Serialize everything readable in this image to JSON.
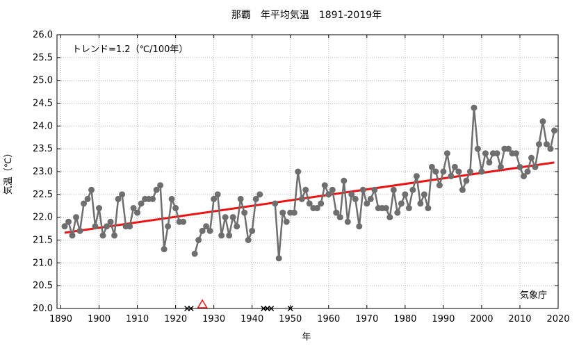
{
  "chart_data": {
    "type": "line",
    "title": "那覇　年平均気温　1891-2019年",
    "xlabel": "年",
    "ylabel": "気温（℃）",
    "trend_label": "トレンド=1.2（℃/100年）",
    "source": "気象庁",
    "xlim": [
      1889,
      2020
    ],
    "ylim": [
      20.0,
      26.0
    ],
    "x_ticks": [
      1890,
      1900,
      1910,
      1920,
      1930,
      1940,
      1950,
      1960,
      1970,
      1980,
      1990,
      2000,
      2010,
      2020
    ],
    "y_ticks": [
      "20.0",
      "20.5",
      "21.0",
      "21.5",
      "22.0",
      "22.5",
      "23.0",
      "23.5",
      "24.0",
      "24.5",
      "25.0",
      "25.5",
      "26.0"
    ],
    "grid": true,
    "colors": {
      "series": "#6e6e6e",
      "trend": "#ee1111",
      "grid": "#b4b4b4",
      "marker_x": "#000000",
      "marker_triangle": "#ee1111"
    },
    "trend": {
      "x": [
        1891,
        2019
      ],
      "y": [
        21.66,
        23.2
      ]
    },
    "x_markers": [
      1923,
      1924,
      1943,
      1944,
      1945,
      1950
    ],
    "triangle_markers": [
      1927
    ],
    "series": [
      {
        "name": "年平均気温",
        "segments": [
          {
            "x": [
              1891,
              1892,
              1893,
              1894,
              1895,
              1896,
              1897,
              1898,
              1899,
              1900,
              1901,
              1902,
              1903,
              1904,
              1905,
              1906,
              1907,
              1908,
              1909,
              1910,
              1911,
              1912,
              1913,
              1914,
              1915,
              1916,
              1917,
              1918,
              1919,
              1920,
              1921,
              1922
            ],
            "y": [
              21.8,
              21.9,
              21.6,
              22.0,
              21.7,
              22.3,
              22.4,
              22.6,
              21.8,
              22.2,
              21.6,
              21.8,
              21.9,
              21.6,
              22.4,
              22.5,
              21.8,
              21.8,
              22.2,
              22.1,
              22.3,
              22.4,
              22.4,
              22.4,
              22.6,
              22.7,
              21.3,
              21.8,
              22.4,
              22.2,
              21.9,
              21.9
            ]
          },
          {
            "x": [
              1925,
              1926,
              1927,
              1928,
              1929,
              1930,
              1931,
              1932,
              1933,
              1934,
              1935,
              1936,
              1937,
              1938,
              1939,
              1940,
              1941,
              1942
            ],
            "y": [
              21.2,
              21.5,
              21.7,
              21.8,
              21.7,
              22.4,
              22.5,
              21.6,
              22.0,
              21.6,
              22.0,
              21.8,
              22.4,
              22.1,
              21.5,
              21.7,
              22.4,
              22.5
            ]
          },
          {
            "x": [
              1946,
              1947,
              1948,
              1949
            ],
            "y": [
              22.3,
              21.1,
              22.1,
              21.9
            ]
          },
          {
            "x": [
              1951,
              1952,
              1953,
              1954,
              1955,
              1956,
              1957,
              1958,
              1959,
              1960,
              1961,
              1962,
              1963,
              1964,
              1965,
              1966,
              1967,
              1968,
              1969,
              1970,
              1971,
              1972,
              1973,
              1974,
              1975,
              1976,
              1977,
              1978,
              1979,
              1980,
              1981,
              1982,
              1983,
              1984,
              1985,
              1986,
              1987,
              1988,
              1989,
              1990,
              1991,
              1992,
              1993,
              1994,
              1995,
              1996,
              1997,
              1998,
              1999,
              2000,
              2001,
              2002,
              2003,
              2004,
              2005,
              2006,
              2007,
              2008,
              2009,
              2010,
              2011,
              2012,
              2013,
              2014,
              2015,
              2016,
              2017,
              2018,
              2019
            ],
            "y": [
              22.1,
              23.0,
              22.4,
              22.6,
              22.3,
              22.2,
              22.2,
              22.3,
              22.7,
              22.5,
              22.6,
              22.1,
              22.0,
              22.8,
              21.9,
              22.5,
              22.4,
              21.8,
              22.6,
              22.3,
              22.4,
              22.6,
              22.2,
              22.2,
              22.2,
              22.0,
              22.6,
              22.1,
              22.3,
              22.5,
              22.2,
              22.6,
              22.9,
              22.3,
              22.5,
              22.2,
              23.1,
              23.0,
              22.7,
              23.0,
              23.4,
              22.9,
              23.1,
              23.0,
              22.6,
              22.8,
              23.0,
              24.4,
              23.5,
              23.0,
              23.4,
              23.2,
              23.4,
              23.4,
              23.1,
              23.5,
              23.5,
              23.4,
              23.4,
              23.1,
              22.9,
              23.0,
              23.3,
              23.1,
              23.6,
              24.1,
              23.6,
              23.5,
              23.9
            ]
          },
          {
            "x": [
              1950
            ],
            "y": [
              22.1
            ]
          }
        ]
      }
    ]
  }
}
